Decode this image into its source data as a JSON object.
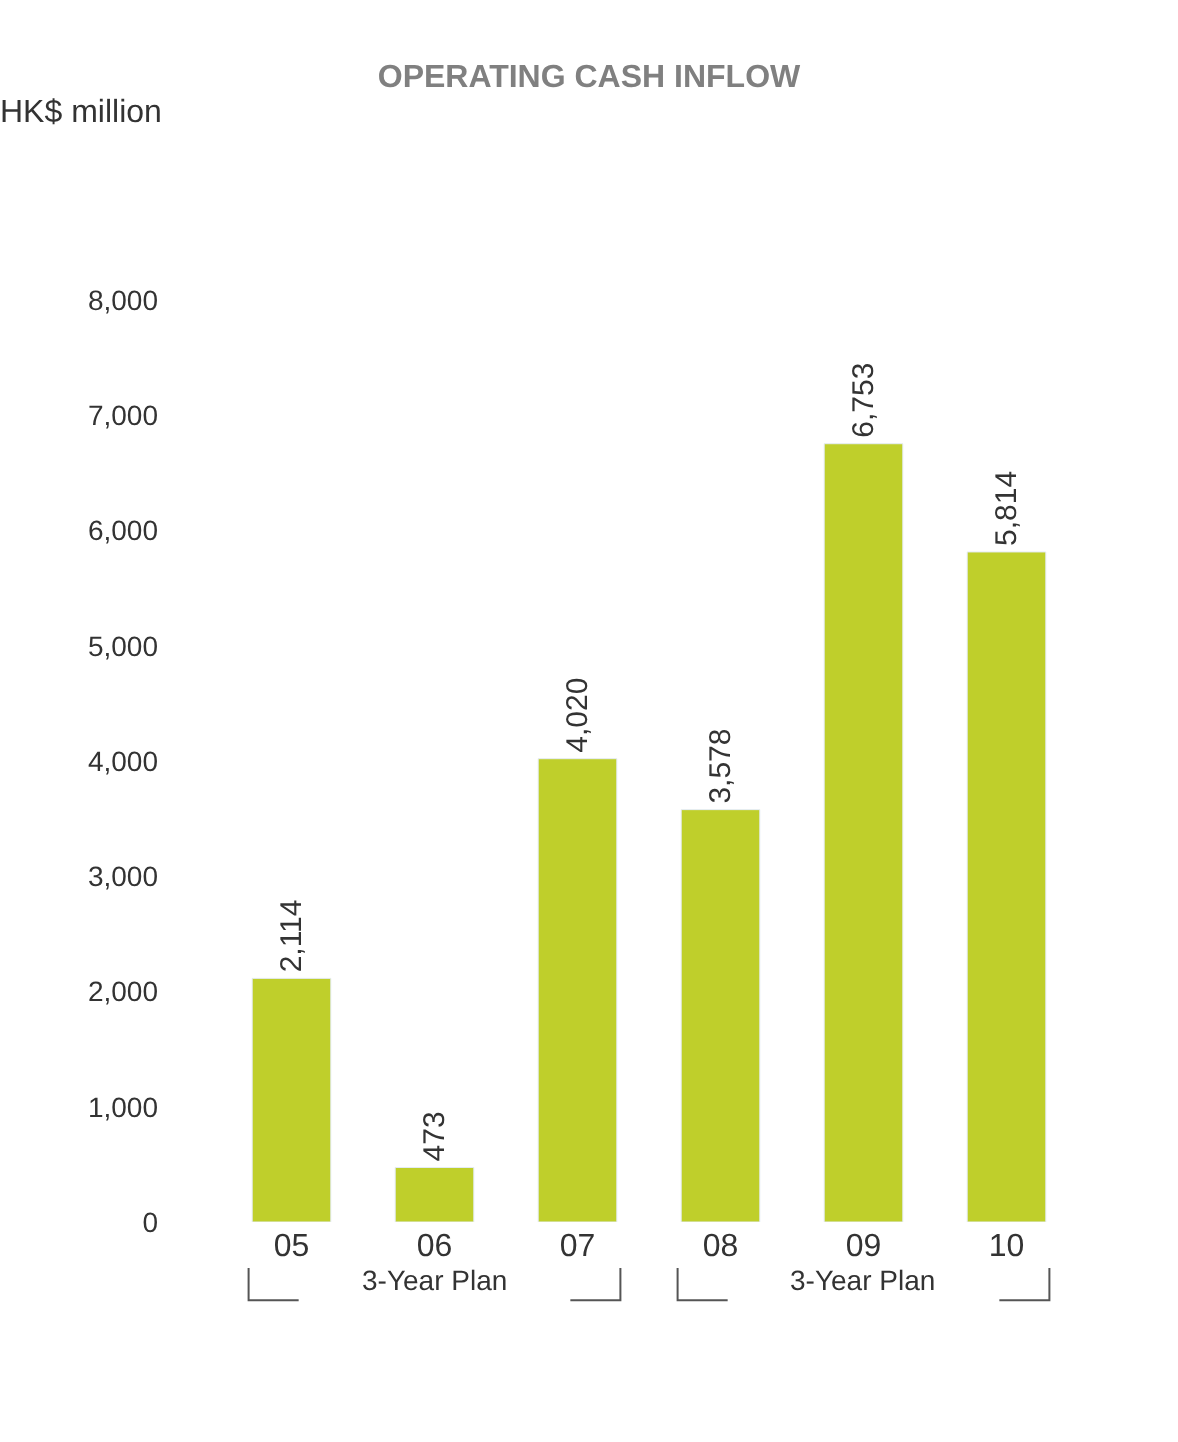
{
  "chart_data": {
    "type": "bar",
    "title": "OPERATING CASH INFLOW",
    "ylabel": "HK$ million",
    "categories": [
      "05",
      "06",
      "07",
      "08",
      "09",
      "10"
    ],
    "values": [
      2114,
      473,
      4020,
      3578,
      6753,
      5814
    ],
    "color": "#bfcf2b",
    "ylim": [
      0,
      8000
    ],
    "yticks": [
      {
        "value": 0,
        "label": "0"
      },
      {
        "value": 1000,
        "label": "1,000"
      },
      {
        "value": 2000,
        "label": "2,000"
      },
      {
        "value": 3000,
        "label": "3,000"
      },
      {
        "value": 4000,
        "label": "4,000"
      },
      {
        "value": 5000,
        "label": "5,000"
      },
      {
        "value": 6000,
        "label": "6,000"
      },
      {
        "value": 7000,
        "label": "7,000"
      },
      {
        "value": 8000,
        "label": "8,000"
      }
    ],
    "value_labels": [
      "2,114",
      "473",
      "4,020",
      "3,578",
      "6,753",
      "5,814"
    ],
    "annotations": [
      "3-Year Plan",
      "3-Year Plan"
    ]
  }
}
